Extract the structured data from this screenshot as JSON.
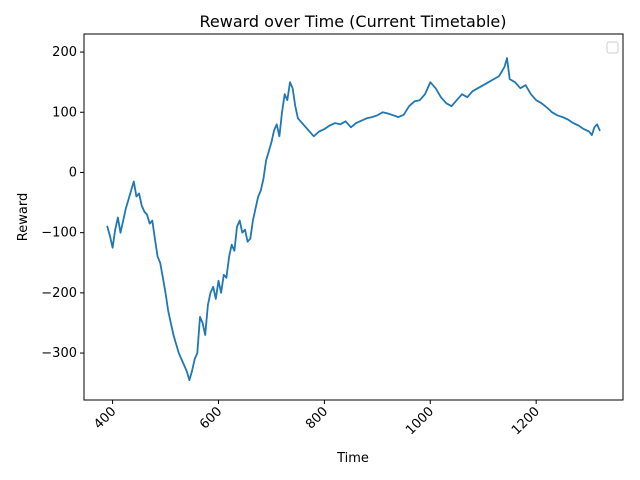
{
  "chart_data": {
    "type": "line",
    "title": "Reward over Time (Current Timetable)",
    "xlabel": "Time",
    "ylabel": "Reward",
    "xlim": [
      346,
      1364
    ],
    "ylim": [
      -378,
      230
    ],
    "xticks": [
      400,
      600,
      800,
      1000,
      1200
    ],
    "yticks": [
      -300,
      -200,
      -100,
      0,
      100,
      200
    ],
    "xtick_rotation": 45,
    "grid": false,
    "legend": {
      "placement": "top-right",
      "entries": []
    },
    "series": [
      {
        "color": "#1f77b4",
        "x": [
          390,
          395,
          400,
          405,
          410,
          415,
          420,
          425,
          430,
          435,
          440,
          445,
          450,
          455,
          460,
          465,
          470,
          475,
          480,
          485,
          490,
          495,
          500,
          505,
          510,
          515,
          520,
          525,
          530,
          535,
          540,
          545,
          550,
          555,
          560,
          565,
          570,
          575,
          580,
          585,
          590,
          595,
          600,
          605,
          610,
          615,
          620,
          625,
          630,
          635,
          640,
          645,
          650,
          655,
          660,
          665,
          670,
          675,
          680,
          685,
          690,
          695,
          700,
          705,
          710,
          715,
          720,
          725,
          730,
          735,
          740,
          745,
          750,
          755,
          760,
          765,
          770,
          775,
          780,
          790,
          800,
          810,
          820,
          830,
          840,
          850,
          860,
          870,
          880,
          890,
          900,
          910,
          920,
          930,
          940,
          950,
          960,
          970,
          980,
          990,
          1000,
          1010,
          1020,
          1030,
          1040,
          1050,
          1060,
          1070,
          1080,
          1090,
          1100,
          1110,
          1120,
          1130,
          1140,
          1145,
          1150,
          1160,
          1170,
          1180,
          1190,
          1200,
          1210,
          1220,
          1230,
          1240,
          1250,
          1260,
          1270,
          1280,
          1290,
          1300,
          1305,
          1310,
          1315,
          1320
        ],
        "y": [
          -90,
          -105,
          -125,
          -95,
          -75,
          -100,
          -80,
          -60,
          -45,
          -30,
          -15,
          -40,
          -35,
          -55,
          -65,
          -70,
          -85,
          -80,
          -110,
          -140,
          -150,
          -175,
          -200,
          -230,
          -250,
          -270,
          -285,
          -300,
          -310,
          -320,
          -330,
          -345,
          -330,
          -310,
          -300,
          -240,
          -250,
          -270,
          -220,
          -200,
          -190,
          -210,
          -180,
          -200,
          -170,
          -175,
          -140,
          -120,
          -130,
          -90,
          -80,
          -100,
          -95,
          -115,
          -110,
          -80,
          -60,
          -40,
          -30,
          -10,
          20,
          35,
          50,
          70,
          80,
          60,
          100,
          130,
          120,
          150,
          140,
          110,
          90,
          85,
          80,
          75,
          70,
          65,
          60,
          68,
          72,
          78,
          82,
          80,
          85,
          75,
          82,
          86,
          90,
          92,
          95,
          100,
          98,
          95,
          92,
          96,
          110,
          118,
          120,
          130,
          150,
          140,
          125,
          115,
          110,
          120,
          130,
          125,
          135,
          140,
          145,
          150,
          155,
          160,
          175,
          190,
          155,
          150,
          140,
          145,
          130,
          120,
          115,
          108,
          100,
          95,
          92,
          88,
          82,
          78,
          72,
          68,
          62,
          75,
          80,
          70
        ]
      }
    ]
  }
}
